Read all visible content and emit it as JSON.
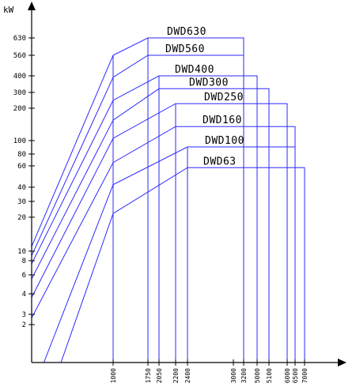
{
  "chart_data": {
    "type": "line",
    "ylabel": "kW",
    "y_ticks": [
      "630",
      "560",
      "400",
      "300",
      "200",
      "100",
      "80",
      "60",
      "40",
      "30",
      "20",
      "10",
      "8",
      "6",
      "4",
      "3",
      "2"
    ],
    "x_ticks": [
      "1000",
      "1750",
      "2050",
      "2200",
      "2400",
      "3000",
      "3200",
      "5000",
      "5100",
      "6000",
      "6500",
      "7000"
    ],
    "series": [
      {
        "name": "DWD630",
        "left_kw": 11.0,
        "knee_kw": 560,
        "top_kw": 630,
        "x_start": 1750,
        "x_end": 3200
      },
      {
        "name": "DWD560",
        "left_kw": 9.0,
        "knee_kw": 390,
        "top_kw": 560,
        "x_start": 1750,
        "x_end": 3200
      },
      {
        "name": "DWD400",
        "left_kw": 7.5,
        "knee_kw": 245,
        "top_kw": 400,
        "x_start": 2050,
        "x_end": 5000
      },
      {
        "name": "DWD300",
        "left_kw": 5.5,
        "knee_kw": 155,
        "top_kw": 320,
        "x_start": 2050,
        "x_end": 5100
      },
      {
        "name": "DWD250",
        "left_kw": 3.8,
        "knee_kw": 105,
        "top_kw": 225,
        "x_start": 2200,
        "x_end": 6000
      },
      {
        "name": "DWD160",
        "left_kw": 2.6,
        "knee_kw": 65,
        "top_kw": 135,
        "x_start": 2200,
        "x_end": 6500
      },
      {
        "name": "DWD100",
        "left_kw": 1.0,
        "knee_kw": 42,
        "top_kw": 90,
        "x_start": 2400,
        "x_end": 6500
      },
      {
        "name": "DWD63",
        "left_kw": 1.0,
        "knee_kw": 22,
        "top_kw": 58,
        "x_start": 2400,
        "x_end": 7000
      }
    ]
  }
}
